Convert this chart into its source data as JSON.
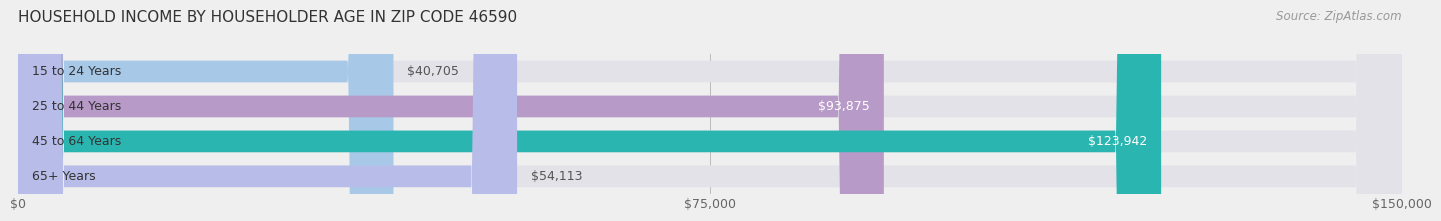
{
  "title": "HOUSEHOLD INCOME BY HOUSEHOLDER AGE IN ZIP CODE 46590",
  "source": "Source: ZipAtlas.com",
  "categories": [
    "15 to 24 Years",
    "25 to 44 Years",
    "45 to 64 Years",
    "65+ Years"
  ],
  "values": [
    40705,
    93875,
    123942,
    54113
  ],
  "bar_colors": [
    "#a8c8e8",
    "#b89ac8",
    "#2ab5b0",
    "#b8bce8"
  ],
  "label_inside": [
    false,
    true,
    true,
    false
  ],
  "xlim": [
    0,
    150000
  ],
  "xticks": [
    0,
    75000,
    150000
  ],
  "xticklabels": [
    "$0",
    "$75,000",
    "$150,000"
  ],
  "background_color": "#efefef",
  "bar_bg_color": "#e2e2e8",
  "title_fontsize": 11,
  "source_fontsize": 8.5,
  "tick_fontsize": 9,
  "label_fontsize": 9,
  "cat_fontsize": 9
}
